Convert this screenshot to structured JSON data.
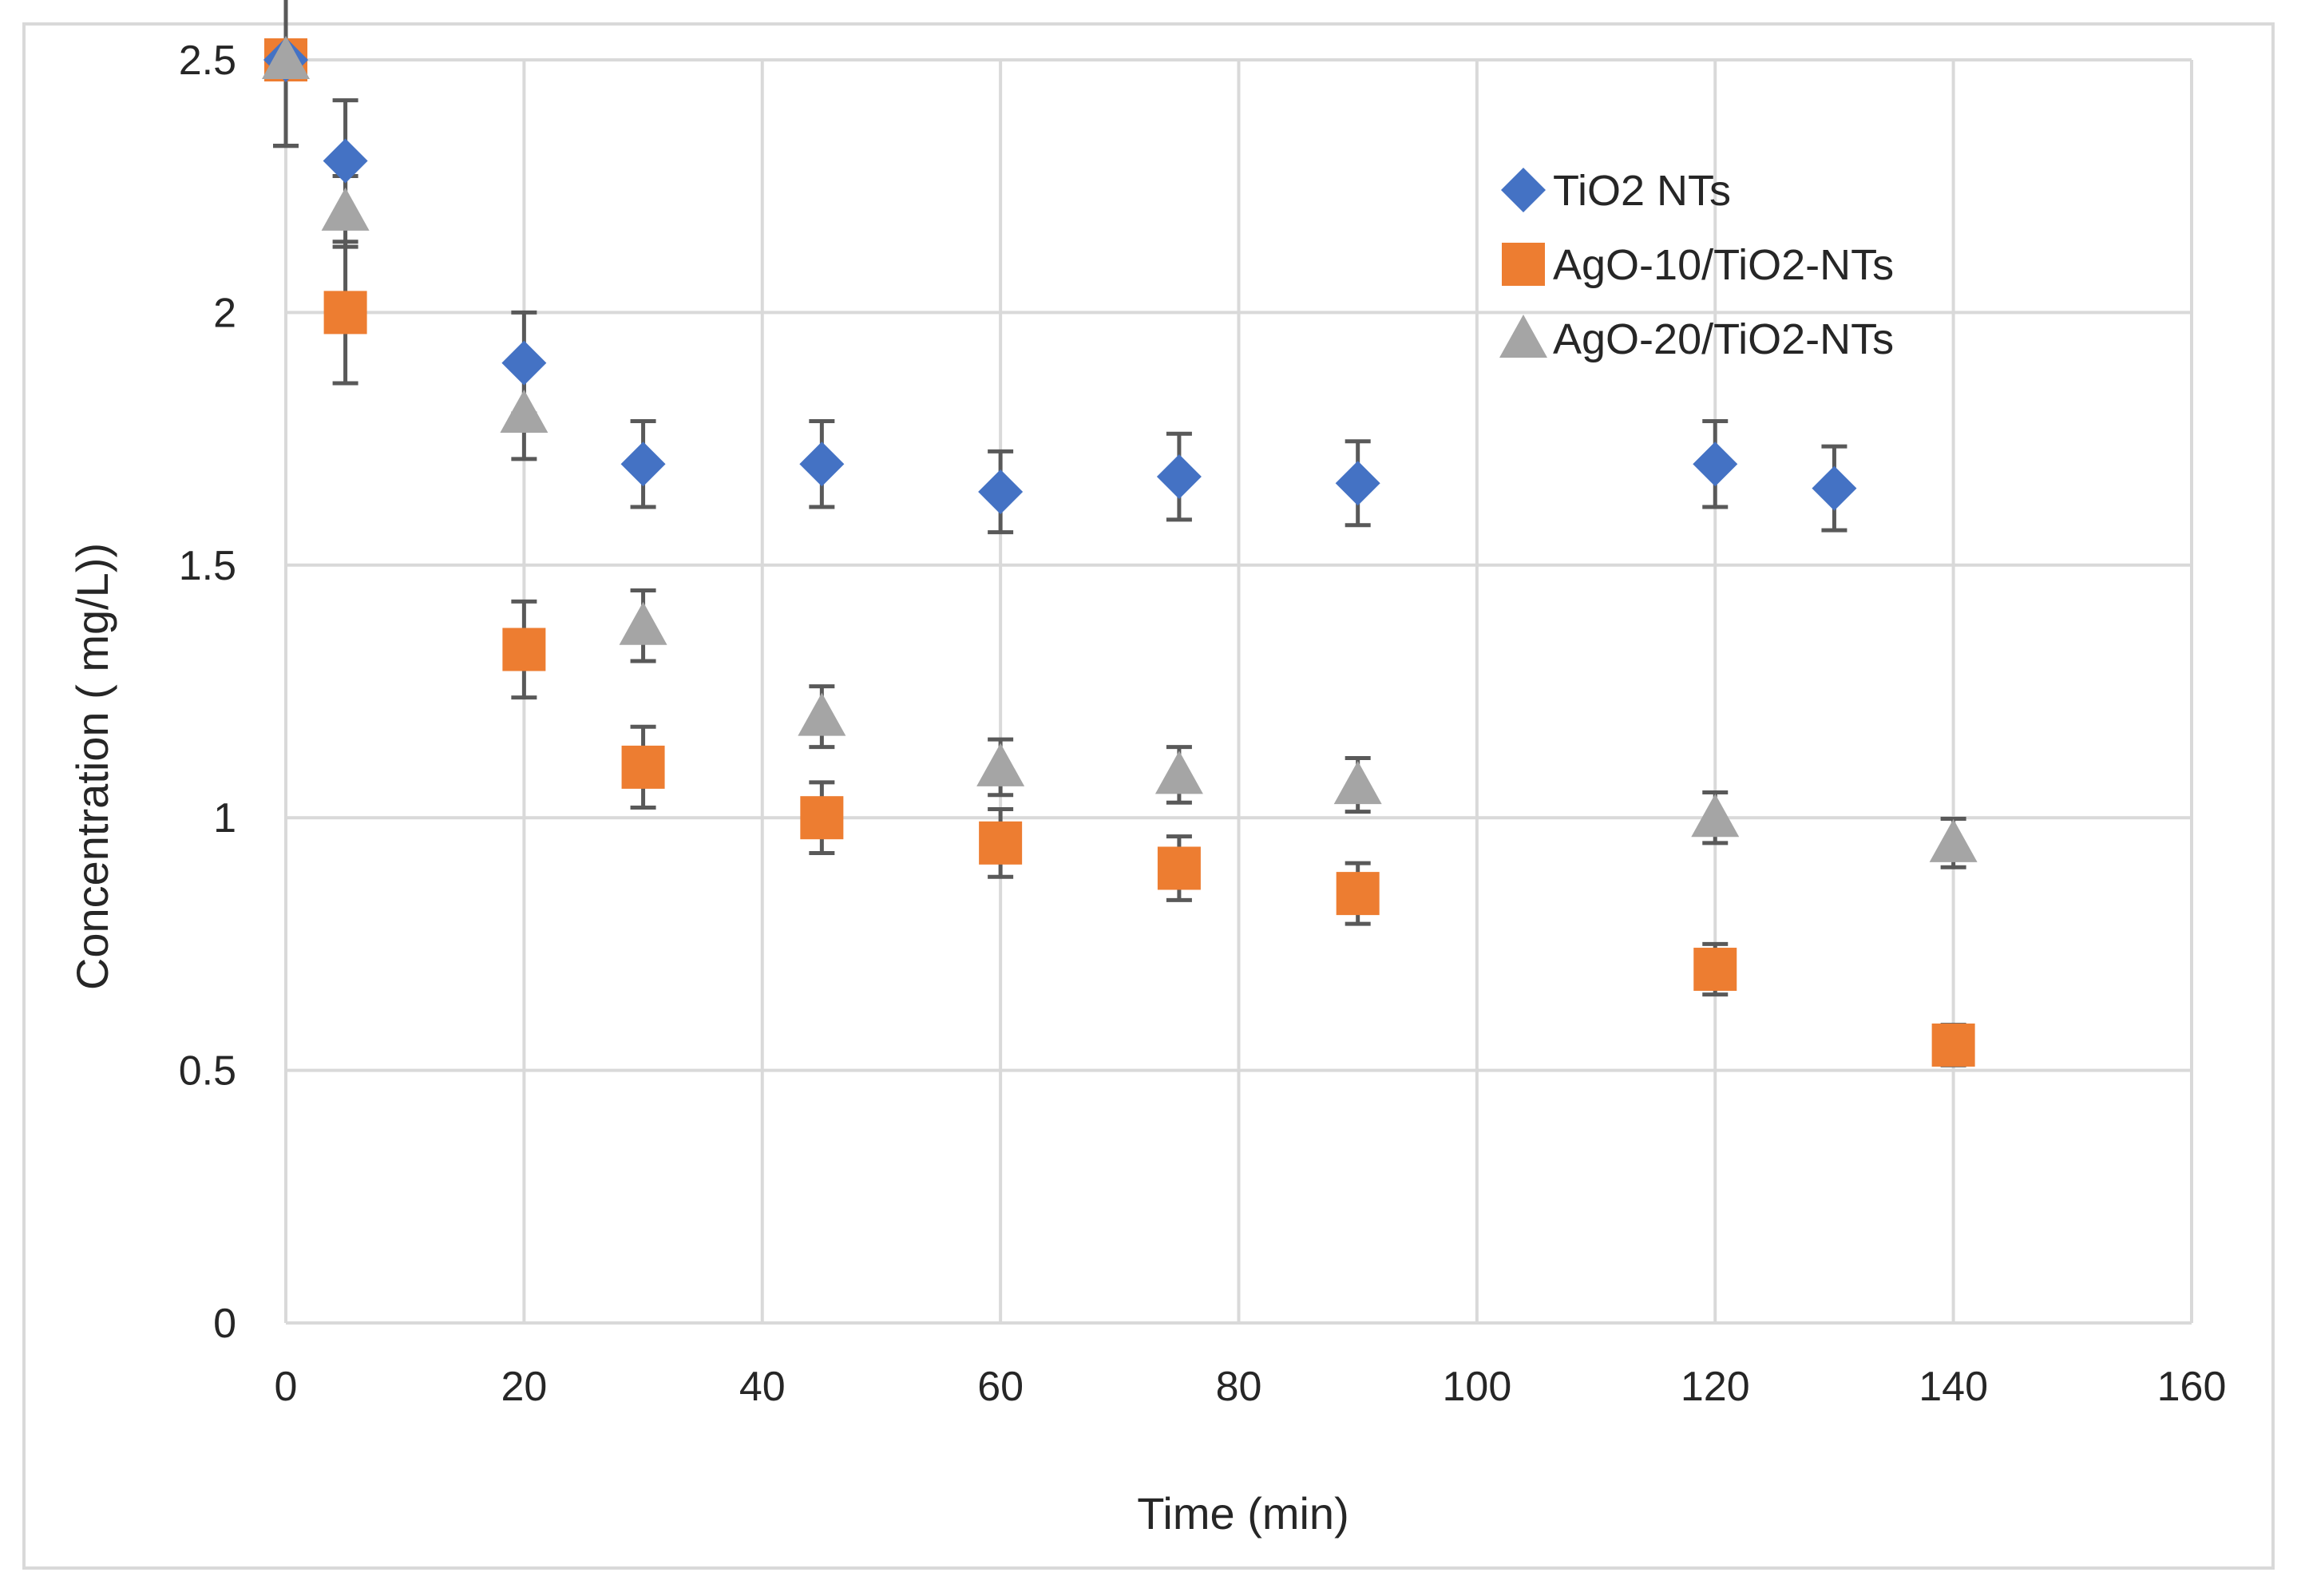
{
  "chart_data": {
    "type": "scatter",
    "title": "",
    "xlabel": "Time (min)",
    "ylabel": "Concentration  ( mg/L))",
    "xlim": [
      0,
      160
    ],
    "ylim": [
      0,
      2.5
    ],
    "xticks": [
      0,
      20,
      40,
      60,
      80,
      100,
      120,
      140,
      160
    ],
    "yticks": [
      0,
      0.5,
      1,
      1.5,
      2,
      2.5
    ],
    "xtick_labels": [
      "0",
      "20",
      "40",
      "60",
      "80",
      "100",
      "120",
      "140",
      "160"
    ],
    "ytick_labels": [
      "0",
      "0.5",
      "1",
      "1.5",
      "2",
      "2.5"
    ],
    "grid": true,
    "legend_position": "top-right",
    "series": [
      {
        "name": "TiO2 NTs",
        "marker": "diamond",
        "color": "#4472C4",
        "points": [
          {
            "x": 0,
            "y": 2.5,
            "err": 0.17
          },
          {
            "x": 5,
            "y": 2.3,
            "err": 0.12
          },
          {
            "x": 20,
            "y": 1.9,
            "err": 0.1
          },
          {
            "x": 30,
            "y": 1.7,
            "err": 0.085
          },
          {
            "x": 45,
            "y": 1.7,
            "err": 0.085
          },
          {
            "x": 60,
            "y": 1.645,
            "err": 0.08
          },
          {
            "x": 75,
            "y": 1.675,
            "err": 0.085
          },
          {
            "x": 90,
            "y": 1.662,
            "err": 0.083
          },
          {
            "x": 120,
            "y": 1.7,
            "err": 0.085
          },
          {
            "x": 130,
            "y": 1.652,
            "err": 0.083
          }
        ]
      },
      {
        "name": "AgO-10/TiO2-NTs",
        "marker": "square",
        "color": "#ED7D31",
        "points": [
          {
            "x": 0,
            "y": 2.5,
            "err": 0.17
          },
          {
            "x": 5,
            "y": 2.0,
            "err": 0.14
          },
          {
            "x": 20,
            "y": 1.333,
            "err": 0.095
          },
          {
            "x": 30,
            "y": 1.1,
            "err": 0.08
          },
          {
            "x": 45,
            "y": 1.0,
            "err": 0.07
          },
          {
            "x": 60,
            "y": 0.95,
            "err": 0.067
          },
          {
            "x": 75,
            "y": 0.9,
            "err": 0.063
          },
          {
            "x": 90,
            "y": 0.85,
            "err": 0.06
          },
          {
            "x": 120,
            "y": 0.7,
            "err": 0.05
          },
          {
            "x": 140,
            "y": 0.55,
            "err": 0.04
          }
        ]
      },
      {
        "name": "AgO-20/TiO2-NTs",
        "marker": "triangle",
        "color": "#A5A5A5",
        "points": [
          {
            "x": 0,
            "y": 2.5,
            "err": 0.17
          },
          {
            "x": 5,
            "y": 2.2,
            "err": 0.07
          },
          {
            "x": 20,
            "y": 1.8,
            "err": 0.09
          },
          {
            "x": 30,
            "y": 1.38,
            "err": 0.07
          },
          {
            "x": 45,
            "y": 1.2,
            "err": 0.06
          },
          {
            "x": 60,
            "y": 1.1,
            "err": 0.055
          },
          {
            "x": 75,
            "y": 1.085,
            "err": 0.055
          },
          {
            "x": 90,
            "y": 1.065,
            "err": 0.053
          },
          {
            "x": 120,
            "y": 1.0,
            "err": 0.05
          },
          {
            "x": 140,
            "y": 0.95,
            "err": 0.048
          }
        ]
      }
    ]
  }
}
